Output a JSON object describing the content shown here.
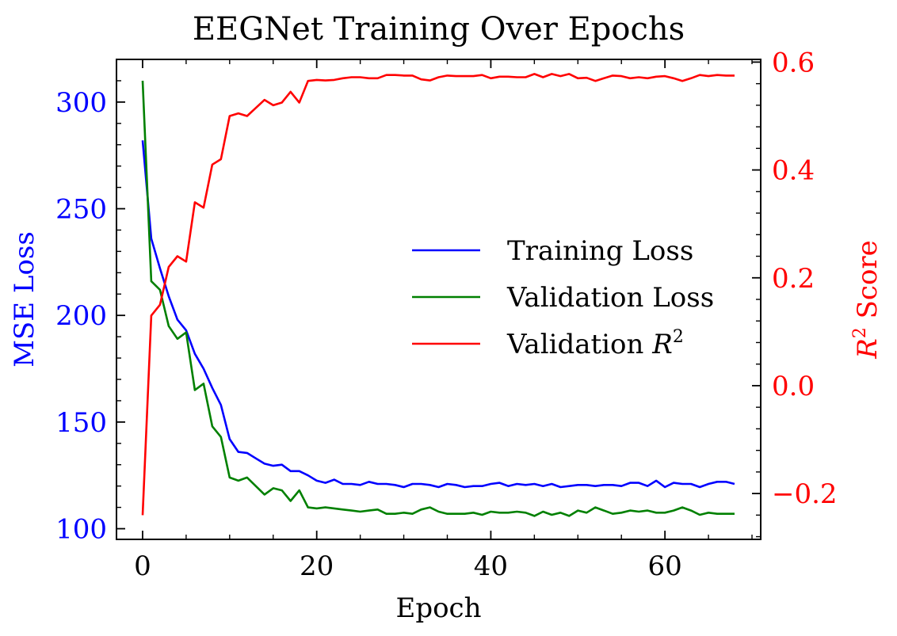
{
  "chart_data": {
    "type": "line",
    "title": "EEGNet Training Over Epochs",
    "xlabel": "Epoch",
    "ylabel_left": "MSE Loss",
    "ylabel_right_base": "R",
    "ylabel_right_sup": "2",
    "ylabel_right_rest": " Score",
    "xlim": [
      -3,
      71
    ],
    "ylim_left": [
      95,
      320
    ],
    "ylim_right": [
      -0.285,
      0.605
    ],
    "x_ticks": [
      0,
      20,
      40,
      60
    ],
    "x_tick_labels": [
      "0",
      "20",
      "40",
      "60"
    ],
    "y_left_ticks": [
      100,
      150,
      200,
      250,
      300
    ],
    "y_left_tick_labels": [
      "100",
      "150",
      "200",
      "250",
      "300"
    ],
    "y_right_ticks": [
      -0.2,
      0.0,
      0.2,
      0.4,
      0.6
    ],
    "y_right_tick_labels": [
      "−0.2",
      "0.0",
      "0.2",
      "0.4",
      "0.6"
    ],
    "grid": false,
    "legend_position": "center-right",
    "colors": {
      "left_axis": "#0000ff",
      "right_axis": "#ff0000"
    },
    "series": [
      {
        "name": "Training Loss",
        "legend_label": "Training Loss",
        "axis": "left",
        "color": "#0000ff",
        "x": [
          0,
          1,
          2,
          3,
          4,
          5,
          6,
          7,
          8,
          9,
          10,
          11,
          12,
          13,
          14,
          15,
          16,
          17,
          18,
          19,
          20,
          21,
          22,
          23,
          24,
          25,
          26,
          27,
          28,
          29,
          30,
          31,
          32,
          33,
          34,
          35,
          36,
          37,
          38,
          39,
          40,
          41,
          42,
          43,
          44,
          45,
          46,
          47,
          48,
          49,
          50,
          51,
          52,
          53,
          54,
          55,
          56,
          57,
          58,
          59,
          60,
          61,
          62,
          63,
          64,
          65,
          66,
          67,
          68
        ],
        "values": [
          282,
          236,
          222,
          209,
          198,
          193,
          182,
          175,
          166,
          158,
          142,
          136,
          135.5,
          133,
          130.5,
          129.5,
          130,
          127,
          127,
          125,
          122.5,
          121.5,
          123,
          121,
          121,
          120.5,
          122,
          121,
          121,
          120.5,
          119.5,
          121,
          121,
          120.5,
          119.5,
          121,
          120.5,
          119.5,
          120,
          120,
          121,
          121.5,
          120,
          121,
          120.5,
          121,
          120,
          121,
          119.5,
          120,
          120.5,
          120.5,
          120,
          120.5,
          120.5,
          120,
          121.5,
          121.5,
          120,
          122.5,
          119.5,
          121.5,
          121,
          121,
          119.5,
          121,
          122,
          122,
          121
        ]
      },
      {
        "name": "Validation Loss",
        "legend_label": "Validation Loss",
        "axis": "left",
        "color": "#008000",
        "x": [
          0,
          1,
          2,
          3,
          4,
          5,
          6,
          7,
          8,
          9,
          10,
          11,
          12,
          13,
          14,
          15,
          16,
          17,
          18,
          19,
          20,
          21,
          22,
          23,
          24,
          25,
          26,
          27,
          28,
          29,
          30,
          31,
          32,
          33,
          34,
          35,
          36,
          37,
          38,
          39,
          40,
          41,
          42,
          43,
          44,
          45,
          46,
          47,
          48,
          49,
          50,
          51,
          52,
          53,
          54,
          55,
          56,
          57,
          58,
          59,
          60,
          61,
          62,
          63,
          64,
          65,
          66,
          67,
          68
        ],
        "values": [
          310,
          216,
          212,
          195,
          189,
          192,
          165,
          168,
          148,
          143,
          124,
          122.5,
          124,
          120,
          116,
          119,
          118,
          113,
          118,
          110,
          109.5,
          110,
          109.5,
          109,
          108.5,
          108,
          108.5,
          109,
          107,
          107,
          107.5,
          107,
          109,
          110,
          108,
          107,
          107,
          107,
          107.5,
          106.5,
          108,
          107.5,
          107.5,
          108,
          107.5,
          106,
          108,
          106.5,
          107.5,
          106,
          108.5,
          107.5,
          110,
          108.5,
          107,
          107.5,
          108.5,
          108,
          108.5,
          107.5,
          107.5,
          108.5,
          110,
          108.5,
          106.5,
          107.5,
          107,
          107,
          107
        ]
      },
      {
        "name": "Validation R2",
        "legend_label_base": "Validation R",
        "legend_label_sup": "2",
        "axis": "right",
        "color": "#ff0000",
        "x": [
          0,
          1,
          2,
          3,
          4,
          5,
          6,
          7,
          8,
          9,
          10,
          11,
          12,
          13,
          14,
          15,
          16,
          17,
          18,
          19,
          20,
          21,
          22,
          23,
          24,
          25,
          26,
          27,
          28,
          29,
          30,
          31,
          32,
          33,
          34,
          35,
          36,
          37,
          38,
          39,
          40,
          41,
          42,
          43,
          44,
          45,
          46,
          47,
          48,
          49,
          50,
          51,
          52,
          53,
          54,
          55,
          56,
          57,
          58,
          59,
          60,
          61,
          62,
          63,
          64,
          65,
          66,
          67,
          68
        ],
        "values": [
          -0.24,
          0.13,
          0.15,
          0.22,
          0.24,
          0.23,
          0.34,
          0.33,
          0.41,
          0.42,
          0.5,
          0.505,
          0.5,
          0.515,
          0.53,
          0.52,
          0.525,
          0.545,
          0.525,
          0.565,
          0.567,
          0.566,
          0.567,
          0.57,
          0.572,
          0.572,
          0.57,
          0.57,
          0.576,
          0.576,
          0.575,
          0.575,
          0.568,
          0.566,
          0.572,
          0.575,
          0.574,
          0.574,
          0.574,
          0.576,
          0.57,
          0.573,
          0.573,
          0.572,
          0.572,
          0.578,
          0.572,
          0.578,
          0.574,
          0.578,
          0.57,
          0.571,
          0.565,
          0.57,
          0.575,
          0.574,
          0.57,
          0.572,
          0.57,
          0.573,
          0.574,
          0.57,
          0.565,
          0.57,
          0.576,
          0.574,
          0.576,
          0.575,
          0.575
        ]
      }
    ]
  }
}
